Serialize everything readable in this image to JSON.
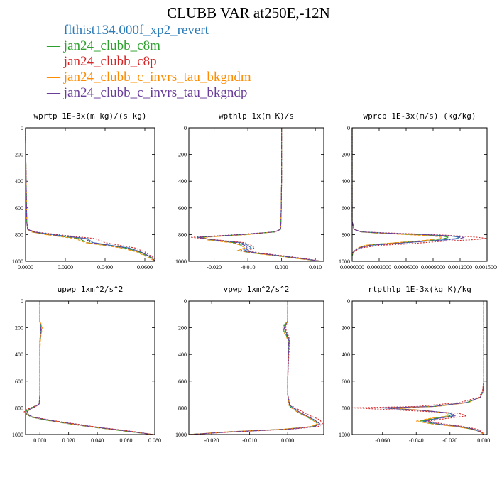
{
  "figure_title": "CLUBB VAR at250E,-12N",
  "legend": [
    {
      "label": "flthist134.000f_xp2_revert",
      "color": "#2b7bb9",
      "dash": "solid"
    },
    {
      "label": "jan24_clubb_c8m",
      "color": "#2ca02c",
      "dash": "longdash"
    },
    {
      "label": "jan24_clubb_c8p",
      "color": "#d62728",
      "dash": "dot"
    },
    {
      "label": "jan24_clubb_c_invrs_tau_bkgndm",
      "color": "#ff8c00",
      "dash": "dash"
    },
    {
      "label": "jan24_clubb_c_invrs_tau_bkgndp",
      "color": "#6a3d9a",
      "dash": "dashdot"
    }
  ],
  "chart_data": [
    {
      "type": "line",
      "title": "wprtp  1E-3x(m kg)/(s kg)",
      "xlim": [
        0,
        0.065
      ],
      "ylim": [
        1000,
        0
      ],
      "xticks": [
        "0.0000",
        "0.0200",
        "0.0400",
        "0.0600"
      ],
      "xtick_values": [
        0,
        0.02,
        0.04,
        0.06
      ],
      "yticks": [
        "0",
        "200",
        "400",
        "600",
        "800",
        "1000"
      ],
      "y": [
        0,
        100,
        200,
        300,
        400,
        500,
        600,
        700,
        760,
        780,
        800,
        830,
        860,
        900,
        930,
        960,
        980,
        1000
      ],
      "series": [
        {
          "legend_index": 0,
          "x": [
            0,
            0,
            0.0001,
            0.0002,
            0.0003,
            0.0004,
            0.0005,
            0.0006,
            0.001,
            0.004,
            0.014,
            0.031,
            0.034,
            0.052,
            0.058,
            0.062,
            0.064,
            0.065
          ]
        },
        {
          "legend_index": 1,
          "x": [
            0,
            0,
            0.0001,
            0.0002,
            0.0003,
            0.0004,
            0.0005,
            0.0006,
            0.001,
            0.003,
            0.011,
            0.027,
            0.031,
            0.05,
            0.057,
            0.061,
            0.064,
            0.065
          ]
        },
        {
          "legend_index": 2,
          "x": [
            0,
            0,
            0.0001,
            0.0002,
            0.0003,
            0.0004,
            0.0005,
            0.0006,
            0.001,
            0.005,
            0.016,
            0.035,
            0.04,
            0.055,
            0.06,
            0.063,
            0.065,
            0.065
          ]
        },
        {
          "legend_index": 3,
          "x": [
            0,
            0,
            0.0001,
            0.0002,
            0.0003,
            0.0004,
            0.0005,
            0.0006,
            0.001,
            0.003,
            0.01,
            0.025,
            0.03,
            0.048,
            0.056,
            0.06,
            0.063,
            0.065
          ]
        },
        {
          "legend_index": 4,
          "x": [
            0,
            0,
            0.0001,
            0.0002,
            0.0003,
            0.0004,
            0.0005,
            0.0006,
            0.001,
            0.004,
            0.013,
            0.03,
            0.033,
            0.051,
            0.058,
            0.062,
            0.064,
            0.065
          ]
        }
      ]
    },
    {
      "type": "line",
      "title": "wpthlp  1x(m K)/s",
      "xlim": [
        -0.0275,
        0.0125
      ],
      "ylim": [
        1000,
        0
      ],
      "xticks": [
        "-0.020",
        "-0.010",
        "0.000",
        "0.010"
      ],
      "xtick_values": [
        -0.02,
        -0.01,
        0,
        0.01
      ],
      "yticks": [
        "0",
        "200",
        "400",
        "600",
        "800",
        "1000"
      ],
      "y": [
        0,
        200,
        400,
        600,
        700,
        760,
        780,
        800,
        820,
        840,
        860,
        880,
        900,
        920,
        940,
        960,
        980,
        1000
      ],
      "series": [
        {
          "legend_index": 0,
          "x": [
            0,
            0,
            0,
            -0.0001,
            -0.0002,
            -0.0003,
            -0.002,
            -0.012,
            -0.025,
            -0.02,
            -0.012,
            -0.01,
            -0.009,
            -0.011,
            -0.007,
            0.0,
            0.006,
            0.012
          ]
        },
        {
          "legend_index": 1,
          "x": [
            0,
            0,
            0,
            -0.0001,
            -0.0002,
            -0.0003,
            -0.002,
            -0.011,
            -0.024,
            -0.021,
            -0.014,
            -0.012,
            -0.011,
            -0.013,
            -0.008,
            -0.001,
            0.005,
            0.012
          ]
        },
        {
          "legend_index": 2,
          "x": [
            0,
            0,
            0,
            -0.0001,
            -0.0002,
            -0.0003,
            -0.002,
            -0.013,
            -0.027,
            -0.019,
            -0.011,
            -0.009,
            -0.008,
            -0.01,
            -0.006,
            0.001,
            0.007,
            0.012
          ]
        },
        {
          "legend_index": 3,
          "x": [
            0,
            0,
            0,
            -0.0001,
            -0.0002,
            -0.0003,
            -0.002,
            -0.01,
            -0.023,
            -0.022,
            -0.015,
            -0.012,
            -0.011,
            -0.013,
            -0.008,
            -0.001,
            0.005,
            0.012
          ]
        },
        {
          "legend_index": 4,
          "x": [
            0,
            0,
            0,
            -0.0001,
            -0.0002,
            -0.0003,
            -0.002,
            -0.012,
            -0.025,
            -0.02,
            -0.013,
            -0.011,
            -0.01,
            -0.012,
            -0.007,
            0.0,
            0.006,
            0.012
          ]
        }
      ]
    },
    {
      "type": "line",
      "title": "wprcp  1E-3x(m/s) (kg/kg)",
      "xlim": [
        0,
        0.0015
      ],
      "ylim": [
        1000,
        0
      ],
      "xticks": [
        "0.0000000",
        "0.0003000",
        "0.0006000",
        "0.0009000",
        "0.0012000",
        "0.0015000"
      ],
      "xtick_values": [
        0,
        0.0003,
        0.0006,
        0.0009,
        0.0012,
        0.0015
      ],
      "yticks": [
        "0",
        "200",
        "400",
        "600",
        "800",
        "1000"
      ],
      "y": [
        0,
        700,
        760,
        780,
        790,
        800,
        810,
        820,
        830,
        840,
        850,
        860,
        870,
        880,
        900,
        920,
        940,
        960
      ],
      "series": [
        {
          "legend_index": 0,
          "x": [
            0,
            0,
            2e-05,
            0.0001,
            0.0004,
            0.0008,
            0.0011,
            0.0012,
            0.00115,
            0.001,
            0.0008,
            0.0006,
            0.0004,
            0.0002,
            8e-05,
            3e-05,
            0,
            0
          ]
        },
        {
          "legend_index": 1,
          "x": [
            0,
            0,
            2e-05,
            0.0001,
            0.0003,
            0.0007,
            0.001,
            0.00108,
            0.00102,
            0.0009,
            0.0007,
            0.0005,
            0.0003,
            0.00015,
            6e-05,
            3e-05,
            1e-05,
            0
          ]
        },
        {
          "legend_index": 2,
          "x": [
            0,
            0,
            2e-05,
            0.0001,
            0.0005,
            0.0009,
            0.0012,
            0.0014,
            0.0015,
            0.0013,
            0.001,
            0.0008,
            0.0006,
            0.0003,
            0.0001,
            4e-05,
            0,
            0
          ]
        },
        {
          "legend_index": 3,
          "x": [
            0,
            0,
            2e-05,
            0.0001,
            0.0003,
            0.0006,
            0.0009,
            0.001,
            0.00098,
            0.00085,
            0.0007,
            0.0005,
            0.0003,
            0.00015,
            6e-05,
            3e-05,
            1e-05,
            0
          ]
        },
        {
          "legend_index": 4,
          "x": [
            0,
            0,
            2e-05,
            0.0001,
            0.0004,
            0.0008,
            0.00112,
            0.00125,
            0.0012,
            0.00105,
            0.0008,
            0.0006,
            0.0004,
            0.0002,
            8e-05,
            3e-05,
            0,
            0
          ]
        }
      ]
    },
    {
      "type": "line",
      "title": "upwp  1xm^2/s^2",
      "xlim": [
        -0.01,
        0.08
      ],
      "ylim": [
        1000,
        0
      ],
      "xticks": [
        "0.000",
        "0.020",
        "0.040",
        "0.060",
        "0.080"
      ],
      "xtick_values": [
        0,
        0.02,
        0.04,
        0.06,
        0.08
      ],
      "yticks": [
        "0",
        "200",
        "400",
        "600",
        "800",
        "1000"
      ],
      "y": [
        0,
        150,
        180,
        200,
        230,
        260,
        300,
        400,
        600,
        700,
        770,
        790,
        810,
        830,
        850,
        870,
        900,
        940,
        980,
        1000
      ],
      "series": [
        {
          "legend_index": 0,
          "x": [
            0,
            0,
            0.0003,
            0.0005,
            0.0004,
            0.0002,
            0,
            0,
            0,
            0,
            -0.0005,
            -0.003,
            -0.007,
            -0.009,
            -0.008,
            -0.005,
            0.01,
            0.035,
            0.065,
            0.079
          ]
        },
        {
          "legend_index": 1,
          "x": [
            0,
            0,
            0.0008,
            0.0012,
            0.001,
            0.0006,
            0.0002,
            0,
            0,
            0,
            -0.0005,
            -0.004,
            -0.008,
            -0.01,
            -0.009,
            -0.006,
            0.008,
            0.033,
            0.063,
            0.079
          ]
        },
        {
          "legend_index": 2,
          "x": [
            0,
            0,
            0.0002,
            0.0004,
            0.0003,
            0.0002,
            0,
            0,
            0,
            0,
            -0.0005,
            -0.004,
            -0.009,
            -0.011,
            -0.009,
            -0.004,
            0.012,
            0.037,
            0.067,
            0.079
          ]
        },
        {
          "legend_index": 3,
          "x": [
            0,
            0,
            0.001,
            0.0015,
            0.0012,
            0.0007,
            0.0003,
            0,
            0,
            0,
            -0.0005,
            -0.003,
            -0.007,
            -0.009,
            -0.008,
            -0.005,
            0.009,
            0.034,
            0.064,
            0.079
          ]
        },
        {
          "legend_index": 4,
          "x": [
            0,
            0,
            0.0005,
            0.0008,
            0.0006,
            0.0003,
            0.0001,
            0,
            0,
            0,
            -0.0005,
            -0.003,
            -0.007,
            -0.009,
            -0.008,
            -0.005,
            0.01,
            0.035,
            0.065,
            0.079
          ]
        }
      ]
    },
    {
      "type": "line",
      "title": "vpwp  1xm^2/s^2",
      "xlim": [
        -0.026,
        0.0095
      ],
      "ylim": [
        1000,
        0
      ],
      "xticks": [
        "-0.020",
        "-0.010",
        "0.000"
      ],
      "xtick_values": [
        -0.02,
        -0.01,
        0
      ],
      "yticks": [
        "0",
        "200",
        "400",
        "600",
        "800",
        "1000"
      ],
      "y": [
        0,
        150,
        180,
        200,
        230,
        260,
        300,
        400,
        600,
        700,
        780,
        800,
        830,
        860,
        890,
        920,
        940,
        960,
        980,
        1000
      ],
      "series": [
        {
          "legend_index": 0,
          "x": [
            0,
            0,
            -0.0005,
            -0.0007,
            -0.0005,
            0,
            0.0004,
            0.0002,
            0,
            0,
            0.0005,
            0.0015,
            0.003,
            0.005,
            0.007,
            0.0085,
            0.007,
            0.0,
            -0.015,
            -0.026
          ]
        },
        {
          "legend_index": 1,
          "x": [
            0,
            0,
            -0.0008,
            -0.0012,
            -0.0009,
            -0.0003,
            0.0002,
            0.0001,
            0,
            0,
            0.0003,
            0.001,
            0.0025,
            0.0045,
            0.0065,
            0.008,
            0.0065,
            -0.001,
            -0.016,
            -0.026
          ]
        },
        {
          "legend_index": 2,
          "x": [
            0,
            0,
            -0.0003,
            -0.0005,
            -0.0003,
            0.0002,
            0.0006,
            0.0003,
            0,
            0,
            0.0007,
            0.002,
            0.004,
            0.006,
            0.0085,
            0.0092,
            0.008,
            0.001,
            -0.014,
            -0.026
          ]
        },
        {
          "legend_index": 3,
          "x": [
            0,
            0,
            -0.001,
            -0.0014,
            -0.0011,
            -0.0004,
            0.0001,
            0.0001,
            0,
            0,
            0.0003,
            0.001,
            0.0025,
            0.0045,
            0.0065,
            0.0078,
            0.0062,
            -0.001,
            -0.016,
            -0.026
          ]
        },
        {
          "legend_index": 4,
          "x": [
            0,
            0,
            -0.0006,
            -0.0009,
            -0.0006,
            -0.0001,
            0.0003,
            0.0002,
            0,
            0,
            0.0005,
            0.0015,
            0.003,
            0.005,
            0.007,
            0.0085,
            0.007,
            0.0,
            -0.015,
            -0.026
          ]
        }
      ]
    },
    {
      "type": "line",
      "title": "rtpthlp  1E-3x(kg K)/kg",
      "xlim": [
        -0.078,
        0.002
      ],
      "ylim": [
        1000,
        0
      ],
      "xticks": [
        "-0.060",
        "-0.040",
        "-0.020",
        "0.000"
      ],
      "xtick_values": [
        -0.06,
        -0.04,
        -0.02,
        0
      ],
      "yticks": [
        "0",
        "200",
        "400",
        "600",
        "800",
        "1000"
      ],
      "y": [
        0,
        400,
        600,
        680,
        720,
        760,
        790,
        800,
        820,
        840,
        860,
        880,
        900,
        920,
        940,
        960,
        980,
        1000
      ],
      "series": [
        {
          "legend_index": 0,
          "x": [
            0,
            0,
            0,
            -0.0005,
            -0.002,
            -0.01,
            -0.03,
            -0.06,
            -0.035,
            -0.02,
            -0.018,
            -0.028,
            -0.036,
            -0.028,
            -0.015,
            -0.006,
            -0.002,
            0
          ]
        },
        {
          "legend_index": 1,
          "x": [
            0,
            0,
            0,
            -0.0005,
            -0.002,
            -0.01,
            -0.03,
            -0.058,
            -0.035,
            -0.021,
            -0.02,
            -0.03,
            -0.038,
            -0.03,
            -0.016,
            -0.007,
            -0.002,
            0
          ]
        },
        {
          "legend_index": 2,
          "x": [
            0,
            0,
            0,
            -0.0008,
            -0.003,
            -0.014,
            -0.04,
            -0.078,
            -0.045,
            -0.015,
            -0.01,
            -0.022,
            -0.033,
            -0.024,
            -0.012,
            -0.004,
            -0.001,
            0
          ]
        },
        {
          "legend_index": 3,
          "x": [
            0,
            0,
            0,
            -0.0005,
            -0.002,
            -0.009,
            -0.028,
            -0.055,
            -0.034,
            -0.022,
            -0.021,
            -0.032,
            -0.04,
            -0.031,
            -0.017,
            -0.007,
            -0.002,
            0
          ]
        },
        {
          "legend_index": 4,
          "x": [
            0,
            0,
            0,
            -0.0005,
            -0.002,
            -0.01,
            -0.03,
            -0.061,
            -0.036,
            -0.019,
            -0.017,
            -0.027,
            -0.035,
            -0.027,
            -0.014,
            -0.006,
            -0.002,
            0
          ]
        }
      ]
    }
  ]
}
